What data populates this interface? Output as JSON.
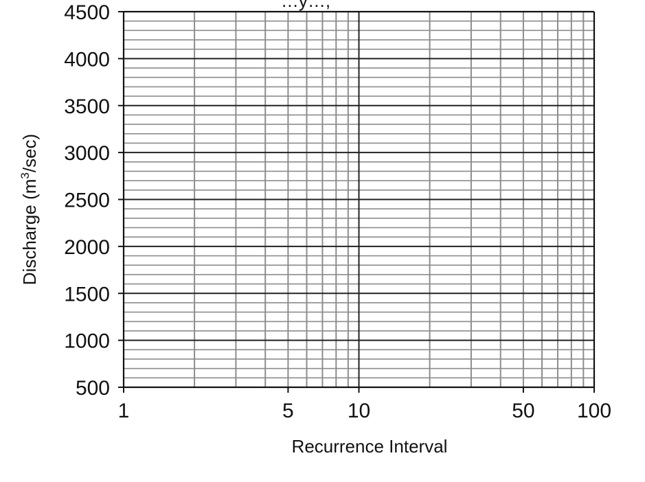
{
  "chart_data": {
    "type": "scatter",
    "title_fragment": "…y…,",
    "xlabel": "Recurrence Interval",
    "ylabel_main": "Discharge (m",
    "ylabel_sup": "3",
    "ylabel_end": "/sec)",
    "x_scale": "log",
    "xlim": [
      1,
      100
    ],
    "ylim": [
      500,
      4500
    ],
    "x_tick_labels": [
      "1",
      "5",
      "10",
      "50",
      "100"
    ],
    "y_tick_labels": [
      "500",
      "1000",
      "1500",
      "2000",
      "2500",
      "3000",
      "3500",
      "4000",
      "4500"
    ],
    "grid": true,
    "series": []
  }
}
